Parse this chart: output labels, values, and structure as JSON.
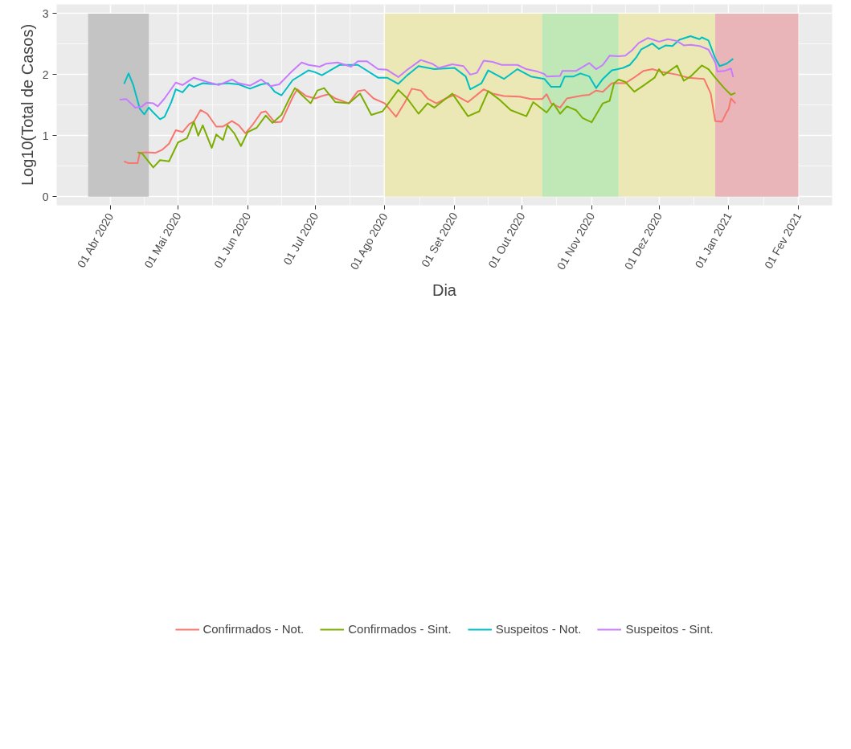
{
  "chart_data": {
    "type": "line",
    "xlabel": "Dia",
    "ylabel": "Log10(Total de Casos)",
    "xlim": [
      "2020-03-08",
      "2021-02-16"
    ],
    "ylim": [
      -0.14,
      3.15
    ],
    "yticks": [
      0,
      1,
      2,
      3
    ],
    "xticks": [
      {
        "value": "2020-04-01",
        "label": "01 Abr 2020"
      },
      {
        "value": "2020-05-01",
        "label": "01 Mai 2020"
      },
      {
        "value": "2020-06-01",
        "label": "01 Jun 2020"
      },
      {
        "value": "2020-07-01",
        "label": "01 Jul 2020"
      },
      {
        "value": "2020-08-01",
        "label": "01 Ago 2020"
      },
      {
        "value": "2020-09-01",
        "label": "01 Set 2020"
      },
      {
        "value": "2020-10-01",
        "label": "01 Out 2020"
      },
      {
        "value": "2020-11-01",
        "label": "01 Nov 2020"
      },
      {
        "value": "2020-12-01",
        "label": "01 Dez 2020"
      },
      {
        "value": "2021-01-01",
        "label": "01 Jan 2021"
      },
      {
        "value": "2021-02-01",
        "label": "01 Fev 2021"
      }
    ],
    "grid": true,
    "legend": "bottom",
    "bands": [
      {
        "axis": "x",
        "from": "2020-03-22",
        "to": "2020-04-18",
        "color": "#c4c4c4"
      },
      {
        "axis": "x",
        "from": "2020-08-01",
        "to": "2020-10-10",
        "color": "#ebe8b5"
      },
      {
        "axis": "x",
        "from": "2020-10-10",
        "to": "2020-11-13",
        "color": "#bfe8b6"
      },
      {
        "axis": "x",
        "from": "2020-11-13",
        "to": "2020-12-26",
        "color": "#ebe8b5"
      },
      {
        "axis": "x",
        "from": "2020-12-26",
        "to": "2021-02-01",
        "color": "#e9b5b8"
      }
    ],
    "series": [
      {
        "name": "Confirmados - Not.",
        "color": "#f8766d",
        "x": [
          "2020-04-07",
          "2020-04-09",
          "2020-04-13",
          "2020-04-14",
          "2020-04-17",
          "2020-04-21",
          "2020-04-24",
          "2020-04-27",
          "2020-04-30",
          "2020-05-03",
          "2020-05-06",
          "2020-05-08",
          "2020-05-11",
          "2020-05-14",
          "2020-05-18",
          "2020-05-21",
          "2020-05-25",
          "2020-05-28",
          "2020-05-31",
          "2020-06-03",
          "2020-06-07",
          "2020-06-09",
          "2020-06-13",
          "2020-06-16",
          "2020-06-21",
          "2020-06-23",
          "2020-06-27",
          "2020-07-01",
          "2020-07-04",
          "2020-07-07",
          "2020-07-10",
          "2020-07-16",
          "2020-07-20",
          "2020-07-23",
          "2020-07-27",
          "2020-08-01",
          "2020-08-06",
          "2020-08-10",
          "2020-08-13",
          "2020-08-17",
          "2020-08-20",
          "2020-08-24",
          "2020-08-28",
          "2020-09-01",
          "2020-09-07",
          "2020-09-14",
          "2020-09-18",
          "2020-09-23",
          "2020-09-30",
          "2020-10-05",
          "2020-10-10",
          "2020-10-12",
          "2020-10-14",
          "2020-10-18",
          "2020-10-21",
          "2020-10-28",
          "2020-10-31",
          "2020-11-03",
          "2020-11-06",
          "2020-11-10",
          "2020-11-16",
          "2020-11-19",
          "2020-11-24",
          "2020-11-28",
          "2020-12-03",
          "2020-12-09",
          "2020-12-14",
          "2020-12-21",
          "2020-12-24",
          "2020-12-26",
          "2020-12-29",
          "2020-12-31",
          "2021-01-01",
          "2021-01-02",
          "2021-01-04"
        ],
        "values": [
          0.58,
          0.55,
          0.55,
          0.72,
          0.73,
          0.72,
          0.77,
          0.87,
          1.09,
          1.06,
          1.19,
          1.23,
          1.42,
          1.36,
          1.15,
          1.15,
          1.24,
          1.17,
          1.04,
          1.17,
          1.38,
          1.4,
          1.22,
          1.23,
          1.63,
          1.76,
          1.65,
          1.61,
          1.65,
          1.68,
          1.61,
          1.53,
          1.73,
          1.75,
          1.61,
          1.53,
          1.31,
          1.55,
          1.77,
          1.74,
          1.61,
          1.53,
          1.61,
          1.67,
          1.55,
          1.76,
          1.69,
          1.65,
          1.64,
          1.6,
          1.6,
          1.68,
          1.53,
          1.46,
          1.61,
          1.66,
          1.67,
          1.74,
          1.72,
          1.86,
          1.86,
          1.93,
          2.06,
          2.09,
          2.04,
          2.0,
          1.95,
          1.93,
          1.69,
          1.24,
          1.23,
          1.38,
          1.44,
          1.61,
          1.53
        ]
      },
      {
        "name": "Confirmados - Sint.",
        "color": "#7cae00",
        "x": [
          "2020-04-13",
          "2020-04-15",
          "2020-04-20",
          "2020-04-23",
          "2020-04-27",
          "2020-05-01",
          "2020-05-05",
          "2020-05-08",
          "2020-05-10",
          "2020-05-12",
          "2020-05-16",
          "2020-05-18",
          "2020-05-21",
          "2020-05-23",
          "2020-05-26",
          "2020-05-29",
          "2020-06-01",
          "2020-06-05",
          "2020-06-09",
          "2020-06-12",
          "2020-06-16",
          "2020-06-19",
          "2020-06-22",
          "2020-06-25",
          "2020-06-29",
          "2020-07-02",
          "2020-07-05",
          "2020-07-10",
          "2020-07-16",
          "2020-07-21",
          "2020-07-26",
          "2020-07-31",
          "2020-08-07",
          "2020-08-11",
          "2020-08-16",
          "2020-08-20",
          "2020-08-23",
          "2020-08-31",
          "2020-09-07",
          "2020-09-12",
          "2020-09-16",
          "2020-09-21",
          "2020-09-26",
          "2020-10-03",
          "2020-10-06",
          "2020-10-12",
          "2020-10-15",
          "2020-10-18",
          "2020-10-21",
          "2020-10-25",
          "2020-10-28",
          "2020-11-01",
          "2020-11-06",
          "2020-11-09",
          "2020-11-11",
          "2020-11-13",
          "2020-11-16",
          "2020-11-20",
          "2020-11-24",
          "2020-11-29",
          "2020-12-01",
          "2020-12-03",
          "2020-12-09",
          "2020-12-12",
          "2020-12-15",
          "2020-12-20",
          "2020-12-23",
          "2020-12-26",
          "2020-12-30",
          "2021-01-02",
          "2021-01-04"
        ],
        "values": [
          0.73,
          0.71,
          0.48,
          0.6,
          0.58,
          0.89,
          0.96,
          1.23,
          1.0,
          1.17,
          0.8,
          1.02,
          0.93,
          1.17,
          1.04,
          0.83,
          1.06,
          1.13,
          1.33,
          1.21,
          1.34,
          1.57,
          1.78,
          1.67,
          1.53,
          1.74,
          1.78,
          1.55,
          1.53,
          1.69,
          1.34,
          1.4,
          1.75,
          1.61,
          1.36,
          1.53,
          1.46,
          1.69,
          1.32,
          1.4,
          1.73,
          1.59,
          1.42,
          1.32,
          1.55,
          1.38,
          1.53,
          1.36,
          1.48,
          1.42,
          1.29,
          1.22,
          1.53,
          1.57,
          1.86,
          1.92,
          1.88,
          1.72,
          1.82,
          1.95,
          2.09,
          1.99,
          2.15,
          1.9,
          1.97,
          2.15,
          2.09,
          1.95,
          1.78,
          1.67,
          1.7
        ]
      },
      {
        "name": "Suspeitos - Not.",
        "color": "#00bfc4",
        "x": [
          "2020-04-07",
          "2020-04-09",
          "2020-04-11",
          "2020-04-14",
          "2020-04-16",
          "2020-04-18",
          "2020-04-20",
          "2020-04-23",
          "2020-04-25",
          "2020-04-28",
          "2020-04-30",
          "2020-05-03",
          "2020-05-06",
          "2020-05-08",
          "2020-05-12",
          "2020-05-18",
          "2020-05-23",
          "2020-05-28",
          "2020-06-02",
          "2020-06-07",
          "2020-06-10",
          "2020-06-13",
          "2020-06-16",
          "2020-06-21",
          "2020-06-28",
          "2020-07-01",
          "2020-07-04",
          "2020-07-12",
          "2020-07-17",
          "2020-07-20",
          "2020-07-29",
          "2020-08-02",
          "2020-08-07",
          "2020-08-11",
          "2020-08-16",
          "2020-08-23",
          "2020-09-01",
          "2020-09-06",
          "2020-09-08",
          "2020-09-13",
          "2020-09-16",
          "2020-09-20",
          "2020-09-23",
          "2020-09-29",
          "2020-10-05",
          "2020-10-11",
          "2020-10-14",
          "2020-10-18",
          "2020-10-20",
          "2020-10-24",
          "2020-10-27",
          "2020-10-31",
          "2020-11-03",
          "2020-11-06",
          "2020-11-10",
          "2020-11-15",
          "2020-11-18",
          "2020-11-21",
          "2020-11-23",
          "2020-11-28",
          "2020-12-01",
          "2020-12-04",
          "2020-12-07",
          "2020-12-10",
          "2020-12-15",
          "2020-12-19",
          "2020-12-20",
          "2020-12-23",
          "2020-12-26",
          "2020-12-28",
          "2020-12-31",
          "2021-01-03"
        ],
        "values": [
          1.85,
          2.02,
          1.84,
          1.44,
          1.35,
          1.46,
          1.38,
          1.27,
          1.31,
          1.55,
          1.76,
          1.71,
          1.84,
          1.8,
          1.86,
          1.84,
          1.86,
          1.84,
          1.77,
          1.84,
          1.86,
          1.72,
          1.66,
          1.91,
          2.07,
          2.04,
          1.99,
          2.16,
          2.16,
          2.16,
          1.95,
          1.95,
          1.85,
          1.99,
          2.14,
          2.09,
          2.11,
          1.97,
          1.76,
          1.86,
          2.07,
          1.99,
          1.93,
          2.09,
          1.97,
          1.93,
          1.8,
          1.8,
          1.97,
          1.97,
          2.02,
          1.97,
          1.78,
          1.93,
          2.07,
          2.11,
          2.16,
          2.29,
          2.41,
          2.51,
          2.42,
          2.48,
          2.47,
          2.57,
          2.63,
          2.58,
          2.61,
          2.56,
          2.27,
          2.14,
          2.18,
          2.26
        ]
      },
      {
        "name": "Suspeitos - Sint.",
        "color": "#c77cff",
        "x": [
          "2020-04-05",
          "2020-04-08",
          "2020-04-10",
          "2020-04-12",
          "2020-04-15",
          "2020-04-17",
          "2020-04-20",
          "2020-04-22",
          "2020-04-25",
          "2020-04-30",
          "2020-05-03",
          "2020-05-08",
          "2020-05-14",
          "2020-05-19",
          "2020-05-25",
          "2020-05-28",
          "2020-06-02",
          "2020-06-07",
          "2020-06-11",
          "2020-06-15",
          "2020-06-20",
          "2020-06-25",
          "2020-06-28",
          "2020-07-03",
          "2020-07-06",
          "2020-07-11",
          "2020-07-17",
          "2020-07-20",
          "2020-07-24",
          "2020-07-29",
          "2020-08-02",
          "2020-08-07",
          "2020-08-11",
          "2020-08-17",
          "2020-08-22",
          "2020-08-25",
          "2020-08-31",
          "2020-09-05",
          "2020-09-08",
          "2020-09-11",
          "2020-09-14",
          "2020-09-18",
          "2020-09-22",
          "2020-09-29",
          "2020-10-03",
          "2020-10-08",
          "2020-10-11",
          "2020-10-12",
          "2020-10-18",
          "2020-10-19",
          "2020-10-25",
          "2020-10-31",
          "2020-11-03",
          "2020-11-06",
          "2020-11-09",
          "2020-11-13",
          "2020-11-16",
          "2020-11-19",
          "2020-11-22",
          "2020-11-26",
          "2020-12-01",
          "2020-12-05",
          "2020-12-09",
          "2020-12-12",
          "2020-12-15",
          "2020-12-19",
          "2020-12-23",
          "2020-12-26",
          "2020-12-27",
          "2020-12-30",
          "2021-01-02",
          "2021-01-03"
        ],
        "values": [
          1.59,
          1.6,
          1.53,
          1.46,
          1.48,
          1.54,
          1.53,
          1.48,
          1.61,
          1.87,
          1.83,
          1.95,
          1.88,
          1.83,
          1.92,
          1.86,
          1.82,
          1.92,
          1.81,
          1.84,
          2.03,
          2.2,
          2.16,
          2.13,
          2.18,
          2.2,
          2.13,
          2.22,
          2.22,
          2.09,
          2.08,
          1.96,
          2.08,
          2.24,
          2.18,
          2.11,
          2.17,
          2.14,
          2.0,
          2.03,
          2.23,
          2.21,
          2.16,
          2.16,
          2.09,
          2.05,
          2.01,
          1.97,
          1.98,
          2.06,
          2.06,
          2.19,
          2.09,
          2.16,
          2.31,
          2.3,
          2.31,
          2.4,
          2.52,
          2.6,
          2.54,
          2.58,
          2.55,
          2.48,
          2.49,
          2.47,
          2.41,
          2.2,
          2.05,
          2.06,
          2.1,
          1.96
        ]
      }
    ]
  }
}
